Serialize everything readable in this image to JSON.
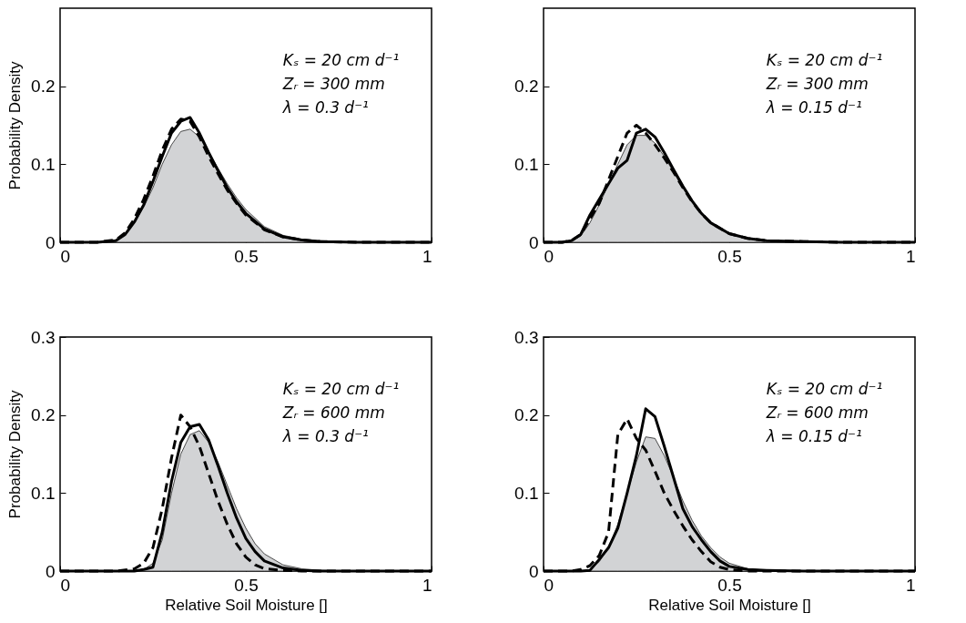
{
  "chart_data": [
    {
      "type": "line",
      "ylabel": "Probability Density",
      "annotations": [
        "Kₛ = 20 cm d⁻¹",
        "Zᵣ = 300 mm",
        "λ = 0.3 d⁻¹"
      ],
      "xlim": [
        0,
        1
      ],
      "ylim": [
        0,
        0.3
      ],
      "xticks": [
        0,
        0.5,
        1
      ],
      "yticks": [
        0,
        0.1,
        0.2
      ],
      "series": [
        {
          "type": "area",
          "color": "#d2d3d5",
          "x": [
            0,
            0.1,
            0.15,
            0.175,
            0.2,
            0.225,
            0.25,
            0.275,
            0.3,
            0.325,
            0.35,
            0.375,
            0.4,
            0.425,
            0.45,
            0.475,
            0.5,
            0.55,
            0.6,
            0.65,
            0.7,
            0.8,
            0.9,
            1
          ],
          "values": [
            0,
            0,
            0.002,
            0.01,
            0.025,
            0.045,
            0.07,
            0.1,
            0.125,
            0.142,
            0.145,
            0.135,
            0.115,
            0.095,
            0.075,
            0.057,
            0.042,
            0.02,
            0.009,
            0.004,
            0.002,
            0,
            0,
            0
          ]
        },
        {
          "color": "#000000",
          "line_style": "solid",
          "x": [
            0,
            0.1,
            0.15,
            0.175,
            0.2,
            0.225,
            0.25,
            0.275,
            0.3,
            0.325,
            0.35,
            0.375,
            0.4,
            0.425,
            0.45,
            0.475,
            0.5,
            0.55,
            0.6,
            0.65,
            0.7,
            0.8,
            0.9,
            1
          ],
          "values": [
            0,
            0,
            0.002,
            0.01,
            0.026,
            0.048,
            0.078,
            0.11,
            0.14,
            0.155,
            0.16,
            0.14,
            0.115,
            0.092,
            0.07,
            0.052,
            0.037,
            0.017,
            0.007,
            0.003,
            0.001,
            0,
            0,
            0
          ]
        },
        {
          "color": "#000000",
          "line_style": "dashed",
          "x": [
            0,
            0.1,
            0.15,
            0.175,
            0.2,
            0.225,
            0.25,
            0.275,
            0.3,
            0.325,
            0.35,
            0.375,
            0.4,
            0.425,
            0.45,
            0.475,
            0.5,
            0.55,
            0.6,
            0.65,
            0.7,
            0.8,
            0.9,
            1
          ],
          "values": [
            0,
            0,
            0.003,
            0.012,
            0.03,
            0.055,
            0.085,
            0.118,
            0.145,
            0.158,
            0.155,
            0.135,
            0.11,
            0.088,
            0.067,
            0.05,
            0.035,
            0.016,
            0.007,
            0.003,
            0.001,
            0,
            0,
            0
          ]
        }
      ]
    },
    {
      "type": "line",
      "annotations": [
        "Kₛ = 20 cm d⁻¹",
        "Zᵣ = 300 mm",
        "λ = 0.15 d⁻¹"
      ],
      "xlim": [
        0,
        1
      ],
      "ylim": [
        0,
        0.3
      ],
      "xticks": [
        0,
        0.5,
        1
      ],
      "yticks": [
        0,
        0.1,
        0.2
      ],
      "series": [
        {
          "type": "area",
          "color": "#d2d3d5",
          "x": [
            0,
            0.05,
            0.075,
            0.1,
            0.125,
            0.15,
            0.175,
            0.2,
            0.225,
            0.25,
            0.275,
            0.3,
            0.325,
            0.35,
            0.375,
            0.4,
            0.425,
            0.45,
            0.5,
            0.55,
            0.6,
            0.7,
            0.8,
            0.9,
            1
          ],
          "values": [
            0,
            0,
            0.002,
            0.008,
            0.025,
            0.048,
            0.075,
            0.1,
            0.125,
            0.137,
            0.137,
            0.127,
            0.11,
            0.09,
            0.07,
            0.052,
            0.037,
            0.025,
            0.011,
            0.005,
            0.002,
            0.001,
            0,
            0,
            0
          ]
        },
        {
          "color": "#000000",
          "line_style": "solid",
          "x": [
            0,
            0.05,
            0.075,
            0.1,
            0.125,
            0.15,
            0.175,
            0.2,
            0.225,
            0.25,
            0.275,
            0.3,
            0.325,
            0.35,
            0.375,
            0.4,
            0.425,
            0.45,
            0.5,
            0.55,
            0.6,
            0.7,
            0.8,
            0.9,
            1
          ],
          "values": [
            0,
            0,
            0.002,
            0.01,
            0.035,
            0.055,
            0.075,
            0.095,
            0.105,
            0.14,
            0.145,
            0.135,
            0.115,
            0.093,
            0.072,
            0.053,
            0.037,
            0.025,
            0.011,
            0.005,
            0.002,
            0.001,
            0,
            0,
            0
          ]
        },
        {
          "color": "#000000",
          "line_style": "dashed",
          "x": [
            0,
            0.05,
            0.075,
            0.1,
            0.125,
            0.15,
            0.175,
            0.2,
            0.225,
            0.25,
            0.275,
            0.3,
            0.325,
            0.35,
            0.375,
            0.4,
            0.425,
            0.45,
            0.5,
            0.55,
            0.6,
            0.7,
            0.8,
            0.9,
            1
          ],
          "values": [
            0,
            0,
            0.002,
            0.01,
            0.03,
            0.05,
            0.08,
            0.11,
            0.14,
            0.15,
            0.14,
            0.125,
            0.108,
            0.09,
            0.07,
            0.052,
            0.037,
            0.025,
            0.011,
            0.005,
            0.002,
            0.001,
            0,
            0,
            0
          ]
        }
      ]
    },
    {
      "type": "line",
      "xlabel": "Relative Soil Moisture []",
      "ylabel": "Probability Density",
      "annotations": [
        "Kₛ = 20 cm d⁻¹",
        "Zᵣ = 600 mm",
        "λ = 0.3 d⁻¹"
      ],
      "xlim": [
        0,
        1
      ],
      "ylim": [
        0,
        0.3
      ],
      "xticks": [
        0,
        0.5,
        1
      ],
      "yticks": [
        0,
        0.1,
        0.2,
        0.3
      ],
      "series": [
        {
          "type": "area",
          "color": "#d2d3d5",
          "x": [
            0,
            0.15,
            0.2,
            0.225,
            0.25,
            0.275,
            0.3,
            0.325,
            0.35,
            0.375,
            0.4,
            0.425,
            0.45,
            0.475,
            0.5,
            0.525,
            0.55,
            0.6,
            0.65,
            0.7,
            0.8,
            0.9,
            1
          ],
          "values": [
            0,
            0,
            0,
            0.002,
            0.01,
            0.04,
            0.1,
            0.15,
            0.175,
            0.18,
            0.165,
            0.14,
            0.11,
            0.08,
            0.055,
            0.035,
            0.022,
            0.008,
            0.003,
            0.001,
            0,
            0,
            0
          ]
        },
        {
          "color": "#000000",
          "line_style": "solid",
          "x": [
            0,
            0.15,
            0.2,
            0.225,
            0.25,
            0.275,
            0.3,
            0.325,
            0.35,
            0.375,
            0.4,
            0.425,
            0.45,
            0.475,
            0.5,
            0.525,
            0.55,
            0.6,
            0.65,
            0.7,
            0.8,
            0.9,
            1
          ],
          "values": [
            0,
            0,
            0,
            0.002,
            0.005,
            0.05,
            0.115,
            0.165,
            0.185,
            0.188,
            0.168,
            0.135,
            0.1,
            0.068,
            0.042,
            0.025,
            0.013,
            0.004,
            0.001,
            0,
            0,
            0,
            0
          ]
        },
        {
          "color": "#000000",
          "line_style": "dashed",
          "x": [
            0,
            0.15,
            0.2,
            0.225,
            0.25,
            0.275,
            0.3,
            0.325,
            0.35,
            0.375,
            0.4,
            0.425,
            0.45,
            0.475,
            0.5,
            0.525,
            0.55,
            0.6,
            0.65,
            0.7,
            0.8,
            0.9,
            1
          ],
          "values": [
            0,
            0,
            0.003,
            0.01,
            0.03,
            0.08,
            0.145,
            0.2,
            0.185,
            0.16,
            0.125,
            0.09,
            0.06,
            0.035,
            0.018,
            0.008,
            0.003,
            0.001,
            0,
            0,
            0,
            0,
            0
          ]
        }
      ]
    },
    {
      "type": "line",
      "xlabel": "Relative Soil Moisture []",
      "annotations": [
        "Kₛ = 20 cm d⁻¹",
        "Zᵣ = 600 mm",
        "λ = 0.15 d⁻¹"
      ],
      "xlim": [
        0,
        1
      ],
      "ylim": [
        0,
        0.3
      ],
      "xticks": [
        0,
        0.5,
        1
      ],
      "yticks": [
        0,
        0.1,
        0.2,
        0.3
      ],
      "series": [
        {
          "type": "area",
          "color": "#d2d3d5",
          "x": [
            0,
            0.075,
            0.1,
            0.125,
            0.15,
            0.175,
            0.2,
            0.225,
            0.25,
            0.275,
            0.3,
            0.325,
            0.35,
            0.375,
            0.4,
            0.425,
            0.45,
            0.475,
            0.5,
            0.55,
            0.6,
            0.7,
            0.8,
            0.9,
            1
          ],
          "values": [
            0,
            0,
            0,
            0.002,
            0.012,
            0.03,
            0.06,
            0.1,
            0.14,
            0.172,
            0.17,
            0.148,
            0.12,
            0.09,
            0.065,
            0.045,
            0.03,
            0.018,
            0.01,
            0.003,
            0.001,
            0,
            0,
            0,
            0
          ]
        },
        {
          "color": "#000000",
          "line_style": "solid",
          "x": [
            0,
            0.075,
            0.1,
            0.125,
            0.15,
            0.175,
            0.2,
            0.225,
            0.25,
            0.275,
            0.3,
            0.325,
            0.35,
            0.375,
            0.4,
            0.425,
            0.45,
            0.475,
            0.5,
            0.55,
            0.6,
            0.7,
            0.8,
            0.9,
            1
          ],
          "values": [
            0,
            0,
            0,
            0.001,
            0.015,
            0.03,
            0.055,
            0.1,
            0.148,
            0.208,
            0.198,
            0.16,
            0.12,
            0.08,
            0.057,
            0.04,
            0.025,
            0.013,
            0.006,
            0.002,
            0.001,
            0,
            0,
            0,
            0
          ]
        },
        {
          "color": "#000000",
          "line_style": "dashed",
          "x": [
            0,
            0.075,
            0.1,
            0.125,
            0.15,
            0.175,
            0.2,
            0.225,
            0.25,
            0.275,
            0.3,
            0.325,
            0.35,
            0.375,
            0.4,
            0.425,
            0.45,
            0.475,
            0.5,
            0.55,
            0.6,
            0.7,
            0.8,
            0.9,
            1
          ],
          "values": [
            0,
            0,
            0.002,
            0.007,
            0.02,
            0.05,
            0.175,
            0.195,
            0.17,
            0.155,
            0.128,
            0.1,
            0.078,
            0.058,
            0.04,
            0.025,
            0.012,
            0.005,
            0.002,
            0,
            0,
            0,
            0,
            0,
            0
          ]
        }
      ]
    }
  ]
}
